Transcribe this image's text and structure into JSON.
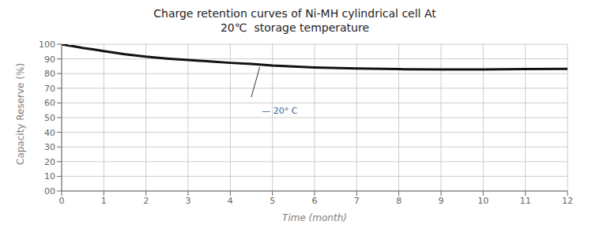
{
  "chart_data": {
    "type": "line",
    "title": "Charge retention curves of Ni-MH cylindrical cell At\n20℃  storage temperature",
    "xlabel": "Time (month)",
    "ylabel": "Capacity Reserve (%)",
    "x": [
      0,
      0.15,
      0.3,
      0.5,
      0.8,
      1.0,
      1.5,
      2.0,
      2.5,
      3.0,
      3.5,
      4.0,
      4.5,
      5.0,
      6.0,
      7.0,
      8.0,
      9.0,
      10.0,
      11.0,
      12.0
    ],
    "values": [
      100,
      99.2,
      98.5,
      97.5,
      96.2,
      95.3,
      93.2,
      91.5,
      90.2,
      89.2,
      88.3,
      87.3,
      86.5,
      85.5,
      84.2,
      83.5,
      83.0,
      82.8,
      82.8,
      83.0,
      83.2
    ],
    "color": "#111111",
    "xlim": [
      0,
      12
    ],
    "ylim": [
      0,
      100
    ],
    "xticks": [
      0,
      1,
      2,
      3,
      4,
      5,
      6,
      7,
      8,
      9,
      10,
      11,
      12
    ],
    "yticks": [
      {
        "value": 0,
        "label": "00"
      },
      10,
      20,
      30,
      40,
      50,
      60,
      70,
      80,
      90,
      100
    ],
    "grid": true,
    "annotations": [
      {
        "text": "— 20° C",
        "x": 4.75,
        "y": 55.0,
        "arrow_from": [
          4.5,
          64.0
        ],
        "arrow_to": [
          4.7,
          84.5
        ]
      }
    ]
  }
}
